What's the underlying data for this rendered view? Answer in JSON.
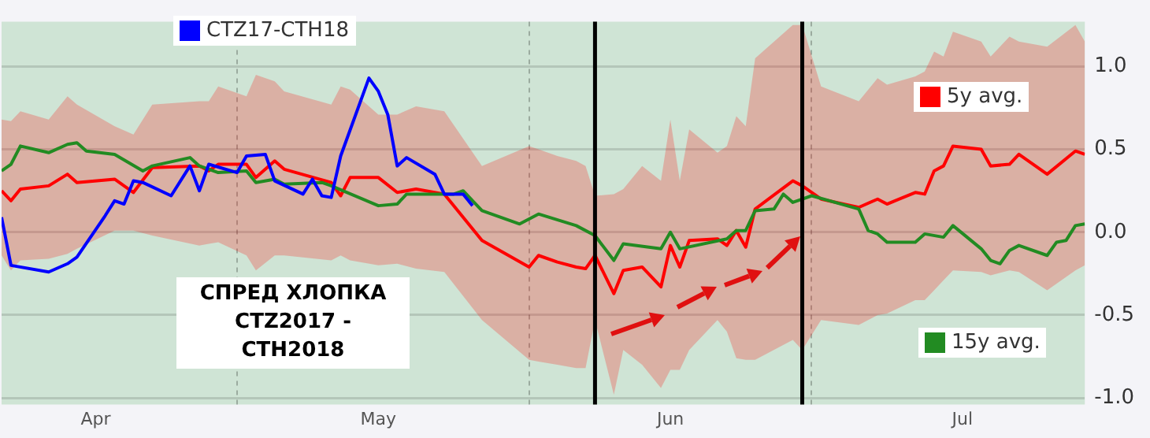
{
  "chart_data": {
    "type": "line",
    "annotations": [
      "СПРЕД ХЛОПКА\nCTZ2017 - CTH2018"
    ],
    "xlim": [
      "--04-06",
      "--07-30"
    ],
    "xticks": [
      {
        "value": "--04-16",
        "label": "Apr"
      },
      {
        "value": "--05-01",
        "label": null
      },
      {
        "value": "--05-16",
        "label": "May"
      },
      {
        "value": "--06-01",
        "label": null
      },
      {
        "value": "--06-16",
        "label": "Jun"
      },
      {
        "value": "--07-01",
        "label": null
      },
      {
        "value": "--07-17",
        "label": "Jul"
      }
    ],
    "ylim": [
      -1.04,
      1.27
    ],
    "yticks": [
      {
        "value": -1,
        "label": "-1.0"
      },
      -0.5,
      {
        "value": 0,
        "label": "0.0"
      },
      0.5,
      {
        "value": 1,
        "label": "1.0"
      }
    ],
    "grid": true,
    "legend": "right",
    "ref_lines": [
      {
        "axis": "x",
        "value": "--06-08",
        "color": "#000000"
      },
      {
        "axis": "x",
        "value": "--06-30",
        "color": "#000000"
      }
    ],
    "series": [
      {
        "name": "5y avg.",
        "color": "#ff0000",
        "x": [
          "--04-06",
          "--04-07",
          "--04-08",
          "--04-11",
          "--04-13",
          "--04-14",
          "--04-18",
          "--04-20",
          "--04-22",
          "--04-27",
          "--04-28",
          "--04-29",
          "--05-02",
          "--05-03",
          "--05-05",
          "--05-06",
          "--05-11",
          "--05-12",
          "--05-13",
          "--05-16",
          "--05-18",
          "--05-20",
          "--05-23",
          "--05-27",
          "--06-01",
          "--06-02",
          "--06-04",
          "--06-06",
          "--06-07",
          "--06-08",
          "--06-10",
          "--06-11",
          "--06-13",
          "--06-15",
          "--06-16",
          "--06-17",
          "--06-18",
          "--06-21",
          "--06-22",
          "--06-23",
          "--06-24",
          "--06-25",
          "--06-29",
          "--06-30",
          "--07-02",
          "--07-06",
          "--07-08",
          "--07-09",
          "--07-12",
          "--07-13",
          "--07-14",
          "--07-15",
          "--07-16",
          "--07-19",
          "--07-20",
          "--07-22",
          "--07-23",
          "--07-26",
          "--07-29",
          "--07-30"
        ],
        "values": [
          0.25,
          0.19,
          0.26,
          0.28,
          0.35,
          0.3,
          0.32,
          0.24,
          0.39,
          0.4,
          0.37,
          0.41,
          0.41,
          0.33,
          0.43,
          0.38,
          0.3,
          0.22,
          0.33,
          0.33,
          0.24,
          0.26,
          0.23,
          -0.05,
          -0.21,
          -0.14,
          -0.18,
          -0.21,
          -0.22,
          -0.14,
          -0.37,
          -0.23,
          -0.21,
          -0.33,
          -0.08,
          -0.21,
          -0.05,
          -0.04,
          -0.08,
          0.01,
          -0.09,
          0.14,
          0.31,
          0.28,
          0.2,
          0.15,
          0.2,
          0.17,
          0.24,
          0.23,
          0.37,
          0.4,
          0.52,
          0.5,
          0.4,
          0.41,
          0.47,
          0.35,
          0.49,
          0.47
        ],
        "upper": [
          0.68,
          0.67,
          0.73,
          0.68,
          0.82,
          0.77,
          0.64,
          0.59,
          0.77,
          0.79,
          0.79,
          0.88,
          0.82,
          0.95,
          0.91,
          0.85,
          0.77,
          0.88,
          0.86,
          0.71,
          0.71,
          0.76,
          0.73,
          0.4,
          0.52,
          0.5,
          0.46,
          0.43,
          0.4,
          0.22,
          0.23,
          0.26,
          0.4,
          0.31,
          0.68,
          0.31,
          0.62,
          0.48,
          0.52,
          0.7,
          0.64,
          1.05,
          1.25,
          1.25,
          0.88,
          0.79,
          0.93,
          0.89,
          0.94,
          0.97,
          1.09,
          1.06,
          1.21,
          1.15,
          1.06,
          1.18,
          1.15,
          1.12,
          1.25,
          1.15
        ],
        "lower": [
          -0.14,
          -0.23,
          -0.17,
          -0.16,
          -0.13,
          -0.1,
          0.01,
          0.01,
          -0.02,
          -0.08,
          -0.07,
          -0.06,
          -0.14,
          -0.23,
          -0.14,
          -0.14,
          -0.17,
          -0.14,
          -0.17,
          -0.2,
          -0.19,
          -0.22,
          -0.24,
          -0.53,
          -0.77,
          -0.78,
          -0.8,
          -0.82,
          -0.82,
          -0.53,
          -0.98,
          -0.71,
          -0.8,
          -0.94,
          -0.83,
          -0.83,
          -0.71,
          -0.53,
          -0.6,
          -0.76,
          -0.77,
          -0.77,
          -0.65,
          -0.71,
          -0.53,
          -0.56,
          -0.5,
          -0.49,
          -0.41,
          -0.41,
          -0.35,
          -0.29,
          -0.23,
          -0.24,
          -0.26,
          -0.23,
          -0.24,
          -0.35,
          -0.23,
          -0.2
        ]
      },
      {
        "name": "15y avg.",
        "color": "#228b22",
        "x": [
          "--04-06",
          "--04-07",
          "--04-08",
          "--04-11",
          "--04-13",
          "--04-14",
          "--04-15",
          "--04-18",
          "--04-21",
          "--04-22",
          "--04-26",
          "--04-27",
          "--04-29",
          "--05-02",
          "--05-03",
          "--05-05",
          "--05-06",
          "--05-10",
          "--05-11",
          "--05-16",
          "--05-18",
          "--05-19",
          "--05-24",
          "--05-25",
          "--05-27",
          "--05-31",
          "--06-02",
          "--06-06",
          "--06-08",
          "--06-10",
          "--06-11",
          "--06-15",
          "--06-16",
          "--06-17",
          "--06-22",
          "--06-23",
          "--06-24",
          "--06-25",
          "--06-27",
          "--06-28",
          "--06-29",
          "--07-01",
          "--07-06",
          "--07-07",
          "--07-08",
          "--07-09",
          "--07-12",
          "--07-13",
          "--07-15",
          "--07-16",
          "--07-19",
          "--07-20",
          "--07-21",
          "--07-22",
          "--07-23",
          "--07-26",
          "--07-27",
          "--07-28",
          "--07-29",
          "--07-30"
        ],
        "values": [
          0.37,
          0.41,
          0.52,
          0.48,
          0.53,
          0.54,
          0.49,
          0.47,
          0.37,
          0.4,
          0.45,
          0.4,
          0.36,
          0.37,
          0.3,
          0.32,
          0.29,
          0.3,
          0.28,
          0.16,
          0.17,
          0.23,
          0.23,
          0.25,
          0.13,
          0.05,
          0.11,
          0.04,
          -0.02,
          -0.17,
          -0.07,
          -0.1,
          0.0,
          -0.1,
          -0.04,
          0.01,
          0.01,
          0.13,
          0.14,
          0.23,
          0.18,
          0.22,
          0.14,
          0.01,
          -0.01,
          -0.06,
          -0.06,
          -0.01,
          -0.03,
          0.04,
          -0.1,
          -0.17,
          -0.19,
          -0.11,
          -0.08,
          -0.14,
          -0.06,
          -0.05,
          0.04,
          0.05
        ]
      },
      {
        "name": "CTZ17-CTH18",
        "color": "#0000ff",
        "x": [
          "--04-06",
          "--04-07",
          "--04-11",
          "--04-13",
          "--04-14",
          "--04-17",
          "--04-18",
          "--04-19",
          "--04-20",
          "--04-21",
          "--04-24",
          "--04-26",
          "--04-27",
          "--04-28",
          "--05-01",
          "--05-02",
          "--05-04",
          "--05-05",
          "--05-08",
          "--05-09",
          "--05-10",
          "--05-11",
          "--05-12",
          "--05-15",
          "--05-16",
          "--05-17",
          "--05-18",
          "--05-19",
          "--05-22",
          "--05-23",
          "--05-25",
          "--05-26"
        ],
        "values": [
          0.09,
          -0.2,
          -0.24,
          -0.19,
          -0.15,
          0.1,
          0.19,
          0.17,
          0.31,
          0.3,
          0.22,
          0.4,
          0.25,
          0.41,
          0.36,
          0.46,
          0.47,
          0.31,
          0.23,
          0.32,
          0.22,
          0.21,
          0.46,
          0.93,
          0.85,
          0.71,
          0.4,
          0.45,
          0.35,
          0.23,
          0.23,
          0.16
        ]
      }
    ]
  }
}
